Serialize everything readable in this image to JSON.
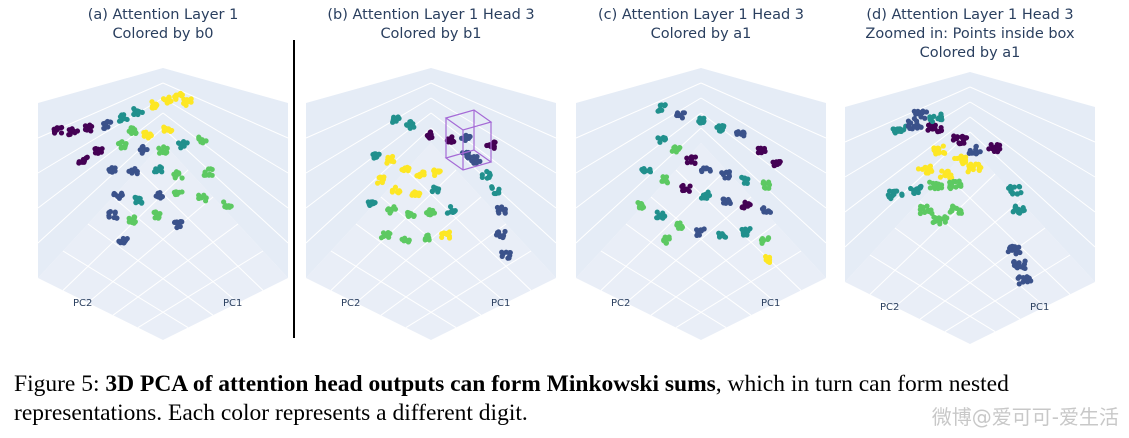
{
  "panels": [
    {
      "id": "a",
      "title_lines": [
        "(a) Attention Layer 1",
        "Colored by b0"
      ],
      "xaxis": "PC2",
      "yaxis": "PC1",
      "box": false
    },
    {
      "id": "b",
      "title_lines": [
        "(b) Attention Layer 1 Head 3",
        "Colored by b1"
      ],
      "xaxis": "PC2",
      "yaxis": "PC1",
      "box": true
    },
    {
      "id": "c",
      "title_lines": [
        "(c) Attention Layer 1 Head 3",
        "Colored by a1"
      ],
      "xaxis": "PC2",
      "yaxis": "PC1",
      "box": false
    },
    {
      "id": "d",
      "title_lines": [
        "(d) Attention Layer 1 Head 3",
        "Zoomed in: Points inside box",
        "Colored by a1"
      ],
      "xaxis": "PC2",
      "yaxis": "PC1",
      "box": false
    }
  ],
  "caption": {
    "prefix": "Figure 5: ",
    "bold": "3D PCA of attention head outputs can form Minkowski sums",
    "rest": ", which in turn can form nested representations. Each color represents a different digit."
  },
  "watermark": "微博@爱可可-爱生活",
  "colors": [
    "#440154",
    "#3b528b",
    "#21908d",
    "#5dc962",
    "#fde725"
  ]
}
